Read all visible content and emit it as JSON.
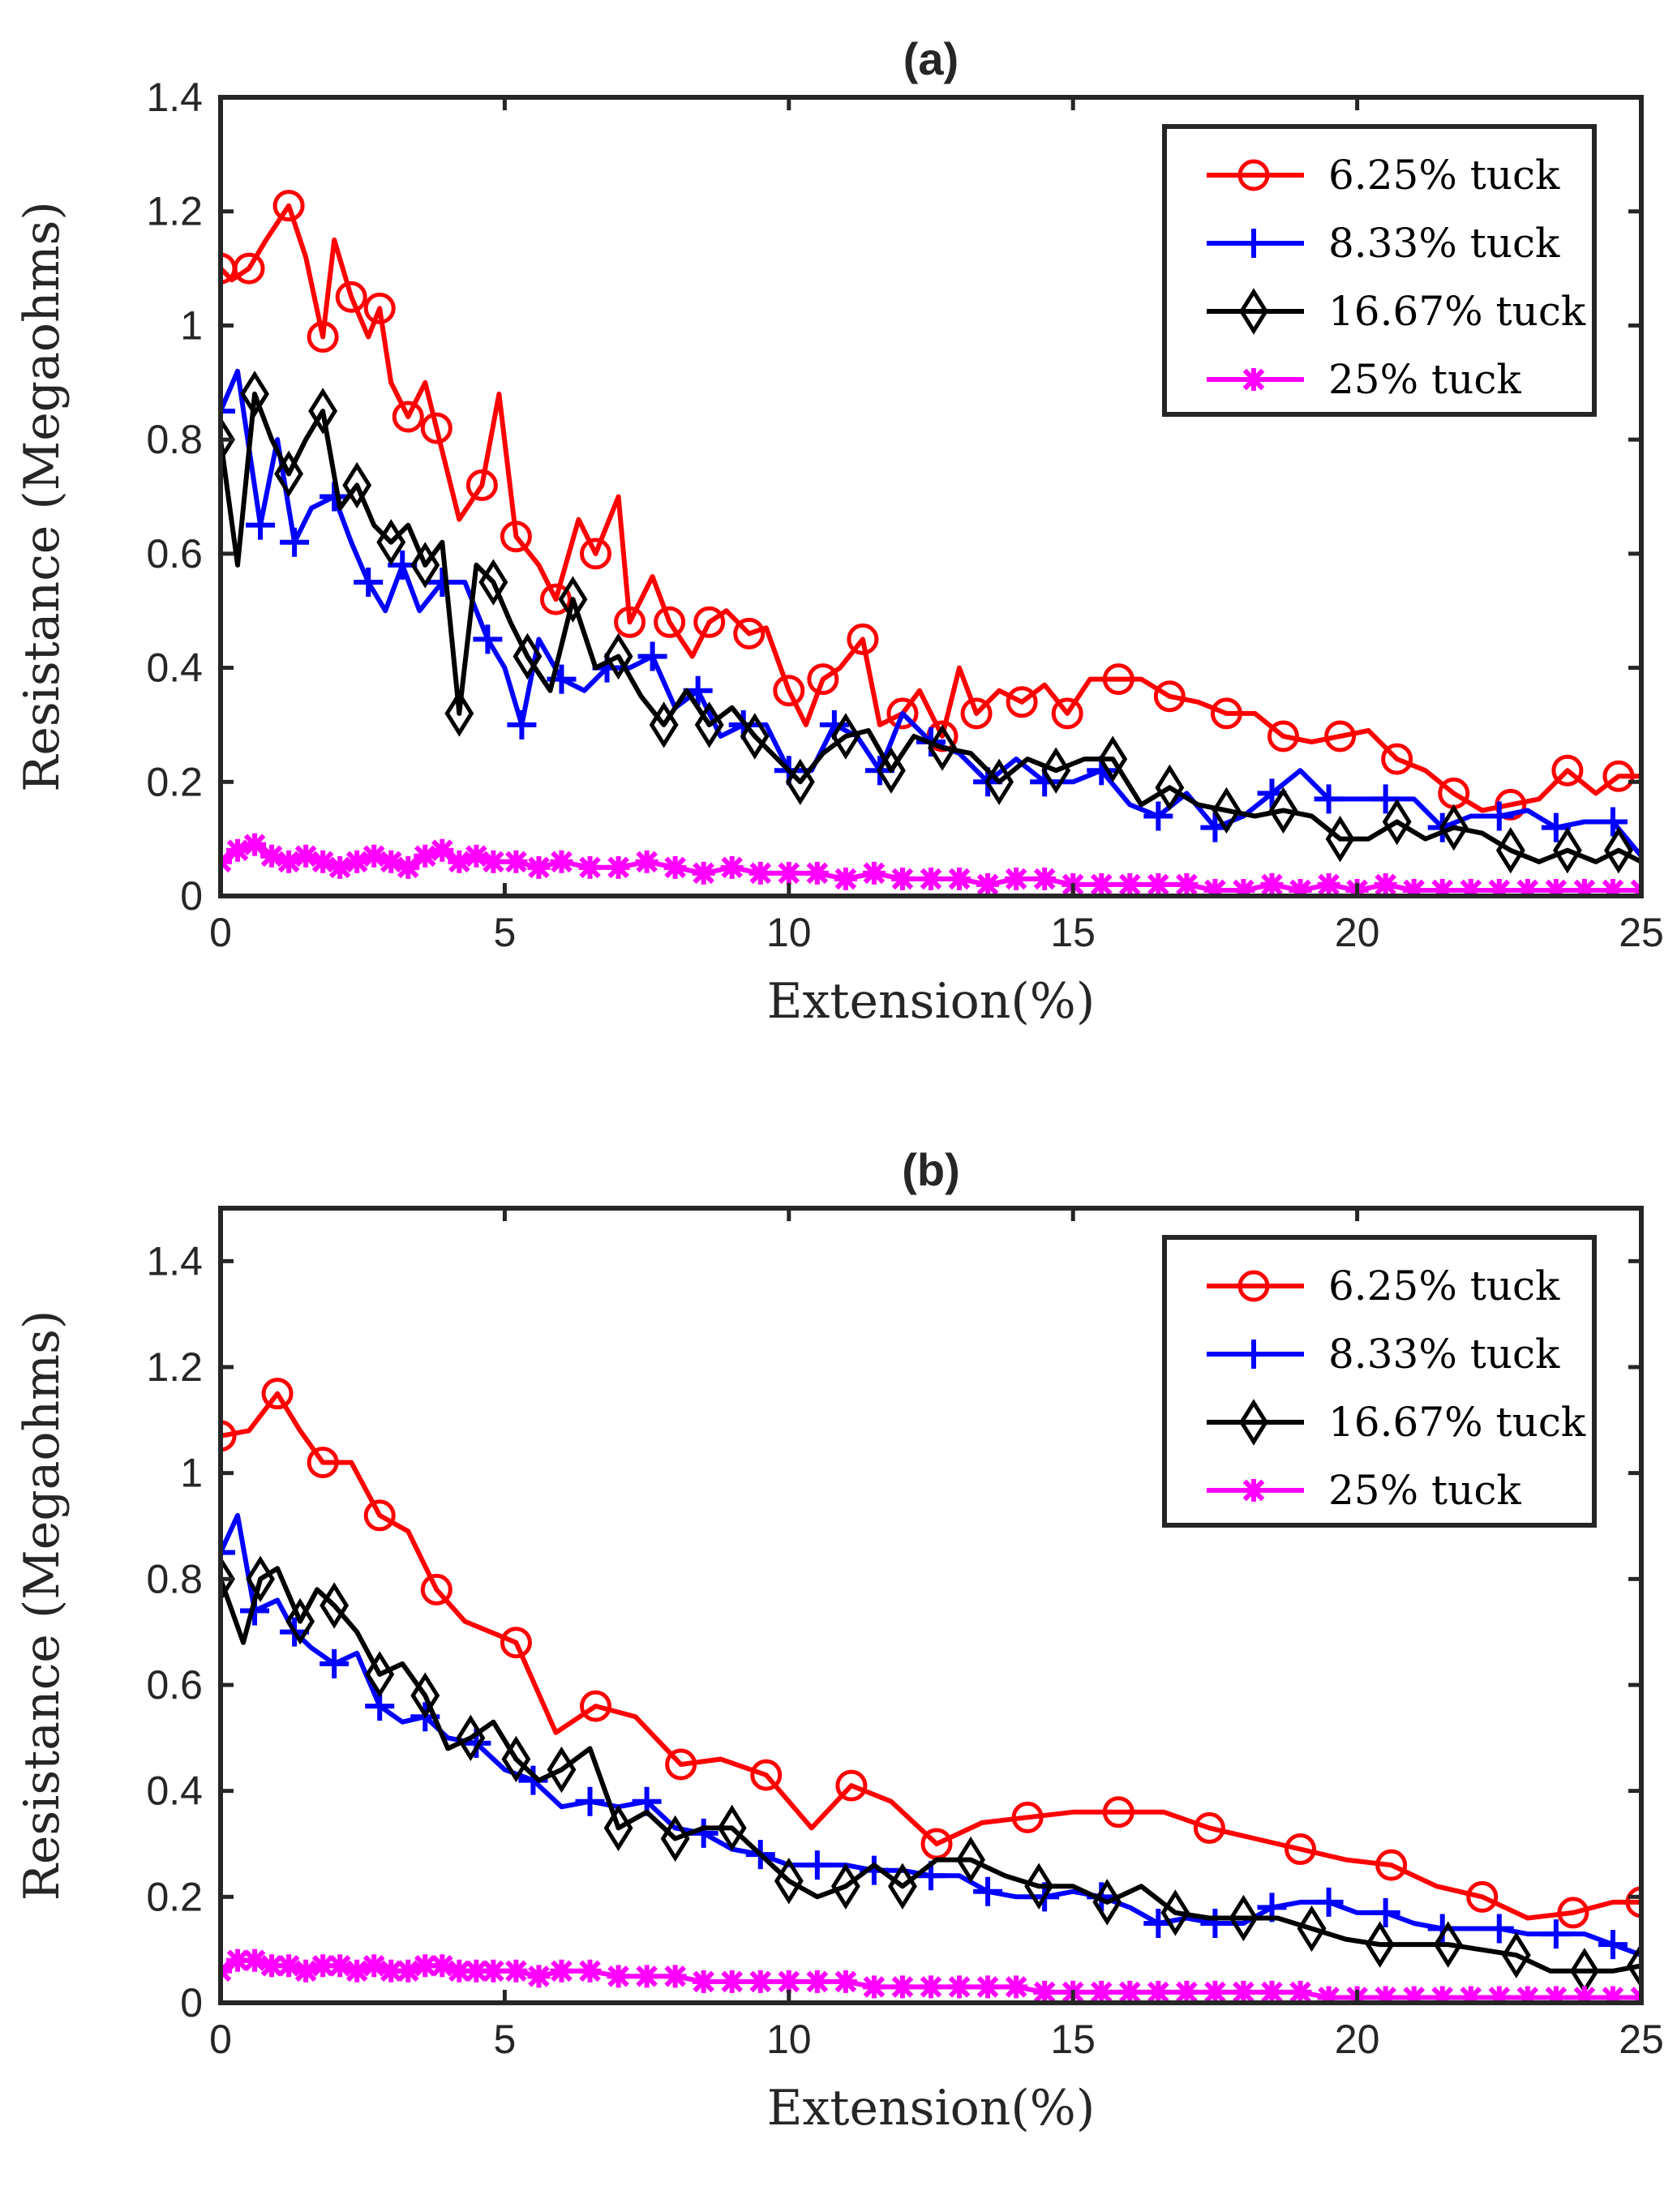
{
  "chart_data": [
    {
      "type": "line",
      "title": "(a)",
      "xlabel": "Extension(%)",
      "ylabel": "Resistance (Megaohms)",
      "xlim": [
        0,
        25
      ],
      "ylim": [
        0,
        1.4
      ],
      "xticks": [
        "0",
        "5",
        "10",
        "15",
        "20",
        "25"
      ],
      "yticks": [
        "0",
        "0.2",
        "0.4",
        "0.6",
        "0.8",
        "1",
        "1.2",
        "1.4"
      ],
      "legend_position": "top-right",
      "series": [
        {
          "name": "6.25% tuck",
          "color": "#ff0000",
          "marker": "circle",
          "x": [
            0,
            0.2,
            0.5,
            0.8,
            1.2,
            1.5,
            1.8,
            2.0,
            2.3,
            2.6,
            2.8,
            3.0,
            3.3,
            3.6,
            3.8,
            4.2,
            4.6,
            4.9,
            5.2,
            5.6,
            5.9,
            6.3,
            6.6,
            7.0,
            7.2,
            7.6,
            7.9,
            8.3,
            8.6,
            8.9,
            9.3,
            9.6,
            10.0,
            10.3,
            10.6,
            10.9,
            11.3,
            11.6,
            12.0,
            12.3,
            12.7,
            13.0,
            13.3,
            13.7,
            14.1,
            14.5,
            14.9,
            15.3,
            15.8,
            16.2,
            16.7,
            17.2,
            17.7,
            18.2,
            18.7,
            19.2,
            19.7,
            20.2,
            20.7,
            21.2,
            21.7,
            22.2,
            22.7,
            23.2,
            23.7,
            24.2,
            24.6,
            25.0
          ],
          "y": [
            1.1,
            1.08,
            1.1,
            1.15,
            1.21,
            1.12,
            0.98,
            1.15,
            1.05,
            0.98,
            1.03,
            0.9,
            0.84,
            0.9,
            0.82,
            0.66,
            0.72,
            0.88,
            0.63,
            0.58,
            0.52,
            0.66,
            0.6,
            0.7,
            0.48,
            0.56,
            0.48,
            0.42,
            0.48,
            0.5,
            0.46,
            0.47,
            0.36,
            0.3,
            0.38,
            0.4,
            0.45,
            0.3,
            0.32,
            0.36,
            0.28,
            0.4,
            0.32,
            0.36,
            0.34,
            0.37,
            0.32,
            0.38,
            0.38,
            0.38,
            0.35,
            0.34,
            0.32,
            0.32,
            0.28,
            0.27,
            0.28,
            0.29,
            0.24,
            0.22,
            0.18,
            0.15,
            0.16,
            0.17,
            0.22,
            0.18,
            0.21,
            0.21
          ]
        },
        {
          "name": "8.33% tuck",
          "color": "#0000ff",
          "marker": "plus",
          "x": [
            0,
            0.3,
            0.7,
            1.0,
            1.3,
            1.6,
            2.0,
            2.3,
            2.6,
            2.9,
            3.2,
            3.5,
            3.9,
            4.3,
            4.7,
            5.0,
            5.3,
            5.6,
            6.0,
            6.4,
            6.8,
            7.2,
            7.6,
            8.0,
            8.4,
            8.8,
            9.2,
            9.6,
            10.0,
            10.4,
            10.8,
            11.2,
            11.6,
            12.0,
            12.5,
            13.0,
            13.5,
            14.0,
            14.5,
            15.0,
            15.5,
            16.0,
            16.5,
            17.0,
            17.5,
            18.0,
            18.5,
            19.0,
            19.5,
            20.0,
            20.5,
            21.0,
            21.5,
            22.0,
            22.5,
            23.0,
            23.5,
            24.0,
            24.5,
            25.0
          ],
          "y": [
            0.85,
            0.92,
            0.65,
            0.8,
            0.62,
            0.68,
            0.7,
            0.62,
            0.55,
            0.5,
            0.58,
            0.5,
            0.55,
            0.55,
            0.45,
            0.4,
            0.3,
            0.45,
            0.38,
            0.36,
            0.4,
            0.4,
            0.42,
            0.33,
            0.36,
            0.28,
            0.3,
            0.3,
            0.22,
            0.22,
            0.3,
            0.28,
            0.22,
            0.32,
            0.27,
            0.25,
            0.2,
            0.24,
            0.2,
            0.2,
            0.22,
            0.16,
            0.14,
            0.18,
            0.12,
            0.14,
            0.18,
            0.22,
            0.17,
            0.17,
            0.17,
            0.17,
            0.12,
            0.14,
            0.14,
            0.15,
            0.12,
            0.13,
            0.13,
            0.07
          ]
        },
        {
          "name": "16.67% tuck",
          "color": "#000000",
          "marker": "diamond",
          "x": [
            0,
            0.3,
            0.6,
            0.9,
            1.2,
            1.5,
            1.8,
            2.1,
            2.4,
            2.7,
            3.0,
            3.3,
            3.6,
            3.9,
            4.2,
            4.5,
            4.8,
            5.1,
            5.4,
            5.8,
            6.2,
            6.6,
            7.0,
            7.4,
            7.8,
            8.2,
            8.6,
            9.0,
            9.4,
            9.8,
            10.2,
            10.6,
            11.0,
            11.4,
            11.8,
            12.2,
            12.7,
            13.2,
            13.7,
            14.2,
            14.7,
            15.2,
            15.7,
            16.2,
            16.7,
            17.2,
            17.7,
            18.2,
            18.7,
            19.2,
            19.7,
            20.2,
            20.7,
            21.2,
            21.7,
            22.2,
            22.7,
            23.2,
            23.7,
            24.2,
            24.6,
            25.0
          ],
          "y": [
            0.8,
            0.58,
            0.88,
            0.8,
            0.74,
            0.8,
            0.85,
            0.68,
            0.72,
            0.65,
            0.62,
            0.65,
            0.58,
            0.62,
            0.32,
            0.58,
            0.55,
            0.48,
            0.42,
            0.36,
            0.52,
            0.4,
            0.42,
            0.35,
            0.3,
            0.36,
            0.3,
            0.33,
            0.28,
            0.24,
            0.2,
            0.25,
            0.28,
            0.29,
            0.22,
            0.28,
            0.26,
            0.25,
            0.2,
            0.24,
            0.22,
            0.24,
            0.24,
            0.16,
            0.19,
            0.16,
            0.15,
            0.14,
            0.15,
            0.14,
            0.1,
            0.1,
            0.13,
            0.1,
            0.12,
            0.11,
            0.08,
            0.06,
            0.08,
            0.06,
            0.08,
            0.06
          ]
        },
        {
          "name": "25% tuck",
          "color": "#ff00ff",
          "marker": "asterisk",
          "x": [
            0,
            0.3,
            0.6,
            0.9,
            1.2,
            1.5,
            1.8,
            2.1,
            2.4,
            2.7,
            3.0,
            3.3,
            3.6,
            3.9,
            4.2,
            4.5,
            4.8,
            5.2,
            5.6,
            6.0,
            6.5,
            7.0,
            7.5,
            8.0,
            8.5,
            9.0,
            9.5,
            10.0,
            10.5,
            11.0,
            11.5,
            12.0,
            12.5,
            13.0,
            13.5,
            14.0,
            14.5,
            15.0,
            15.5,
            16.0,
            16.5,
            17.0,
            17.5,
            18.0,
            18.5,
            19.0,
            19.5,
            20.0,
            20.5,
            21.0,
            21.5,
            22.0,
            22.5,
            23.0,
            23.5,
            24.0,
            24.5,
            25.0
          ],
          "y": [
            0.06,
            0.08,
            0.09,
            0.07,
            0.06,
            0.07,
            0.06,
            0.05,
            0.06,
            0.07,
            0.06,
            0.05,
            0.07,
            0.08,
            0.06,
            0.07,
            0.06,
            0.06,
            0.05,
            0.06,
            0.05,
            0.05,
            0.06,
            0.05,
            0.04,
            0.05,
            0.04,
            0.04,
            0.04,
            0.03,
            0.04,
            0.03,
            0.03,
            0.03,
            0.02,
            0.03,
            0.03,
            0.02,
            0.02,
            0.02,
            0.02,
            0.02,
            0.01,
            0.01,
            0.02,
            0.01,
            0.02,
            0.01,
            0.02,
            0.01,
            0.01,
            0.01,
            0.01,
            0.01,
            0.01,
            0.01,
            0.01,
            0.01
          ]
        }
      ]
    },
    {
      "type": "line",
      "title": "(b)",
      "xlabel": "Extension(%)",
      "ylabel": "Resistance (Megaohms)",
      "xlim": [
        0,
        25
      ],
      "ylim": [
        0,
        1.5
      ],
      "xticks": [
        "0",
        "5",
        "10",
        "15",
        "20",
        "25"
      ],
      "yticks": [
        "0",
        "0.2",
        "0.4",
        "0.6",
        "0.8",
        "1",
        "1.2",
        "1.4"
      ],
      "legend_position": "top-right",
      "series": [
        {
          "name": "6.25% tuck",
          "color": "#ff0000",
          "marker": "circle",
          "x": [
            0,
            0.5,
            1.0,
            1.4,
            1.8,
            2.3,
            2.8,
            3.3,
            3.8,
            4.3,
            5.2,
            5.9,
            6.6,
            7.3,
            8.1,
            8.8,
            9.6,
            10.4,
            11.1,
            11.8,
            12.6,
            13.4,
            14.2,
            15.0,
            15.8,
            16.6,
            17.4,
            18.2,
            19.0,
            19.8,
            20.6,
            21.4,
            22.2,
            23.0,
            23.8,
            24.5,
            25.0
          ],
          "y": [
            1.07,
            1.08,
            1.15,
            1.08,
            1.02,
            1.02,
            0.92,
            0.89,
            0.78,
            0.72,
            0.68,
            0.51,
            0.56,
            0.54,
            0.45,
            0.46,
            0.43,
            0.33,
            0.41,
            0.38,
            0.3,
            0.34,
            0.35,
            0.36,
            0.36,
            0.36,
            0.33,
            0.31,
            0.29,
            0.27,
            0.26,
            0.22,
            0.2,
            0.16,
            0.17,
            0.19,
            0.19
          ]
        },
        {
          "name": "8.33% tuck",
          "color": "#0000ff",
          "marker": "plus",
          "x": [
            0,
            0.3,
            0.6,
            1.0,
            1.3,
            1.6,
            2.0,
            2.4,
            2.8,
            3.2,
            3.6,
            4.0,
            4.5,
            5.0,
            5.5,
            6.0,
            6.5,
            7.0,
            7.5,
            8.0,
            8.5,
            9.0,
            9.5,
            10.0,
            10.5,
            11.0,
            11.5,
            12.0,
            12.5,
            13.0,
            13.5,
            14.0,
            14.5,
            15.0,
            15.5,
            16.0,
            16.5,
            17.0,
            17.5,
            18.0,
            18.5,
            19.0,
            19.5,
            20.0,
            20.5,
            21.0,
            21.5,
            22.0,
            22.5,
            23.0,
            23.5,
            24.0,
            24.5,
            25.0
          ],
          "y": [
            0.85,
            0.92,
            0.74,
            0.76,
            0.7,
            0.67,
            0.64,
            0.66,
            0.56,
            0.53,
            0.54,
            0.5,
            0.49,
            0.44,
            0.42,
            0.37,
            0.38,
            0.37,
            0.38,
            0.33,
            0.32,
            0.29,
            0.28,
            0.26,
            0.26,
            0.26,
            0.25,
            0.25,
            0.24,
            0.24,
            0.21,
            0.2,
            0.2,
            0.21,
            0.2,
            0.18,
            0.15,
            0.16,
            0.15,
            0.15,
            0.18,
            0.19,
            0.19,
            0.17,
            0.17,
            0.15,
            0.14,
            0.14,
            0.14,
            0.13,
            0.13,
            0.13,
            0.11,
            0.09
          ]
        },
        {
          "name": "16.67% tuck",
          "color": "#000000",
          "marker": "diamond",
          "x": [
            0,
            0.4,
            0.7,
            1.0,
            1.4,
            1.7,
            2.0,
            2.4,
            2.8,
            3.2,
            3.6,
            4.0,
            4.4,
            4.8,
            5.2,
            5.6,
            6.0,
            6.5,
            7.0,
            7.5,
            8.0,
            8.5,
            9.0,
            9.5,
            10.0,
            10.5,
            11.0,
            11.5,
            12.0,
            12.6,
            13.2,
            13.8,
            14.4,
            15.0,
            15.6,
            16.2,
            16.8,
            17.4,
            18.0,
            18.6,
            19.2,
            19.8,
            20.4,
            21.0,
            21.6,
            22.2,
            22.8,
            23.4,
            24.0,
            24.5,
            25.0
          ],
          "y": [
            0.8,
            0.68,
            0.8,
            0.82,
            0.72,
            0.78,
            0.75,
            0.7,
            0.62,
            0.64,
            0.58,
            0.48,
            0.5,
            0.53,
            0.46,
            0.42,
            0.44,
            0.48,
            0.33,
            0.36,
            0.31,
            0.33,
            0.33,
            0.28,
            0.23,
            0.2,
            0.22,
            0.26,
            0.22,
            0.27,
            0.27,
            0.24,
            0.22,
            0.22,
            0.19,
            0.22,
            0.17,
            0.16,
            0.16,
            0.16,
            0.14,
            0.12,
            0.11,
            0.11,
            0.11,
            0.1,
            0.09,
            0.06,
            0.06,
            0.06,
            0.07
          ]
        },
        {
          "name": "25% tuck",
          "color": "#ff00ff",
          "marker": "asterisk",
          "x": [
            0,
            0.3,
            0.6,
            0.9,
            1.2,
            1.5,
            1.8,
            2.1,
            2.4,
            2.7,
            3.0,
            3.3,
            3.6,
            3.9,
            4.2,
            4.5,
            4.8,
            5.2,
            5.6,
            6.0,
            6.5,
            7.0,
            7.5,
            8.0,
            8.5,
            9.0,
            9.5,
            10.0,
            10.5,
            11.0,
            11.5,
            12.0,
            12.5,
            13.0,
            13.5,
            14.0,
            14.5,
            15.0,
            15.5,
            16.0,
            16.5,
            17.0,
            17.5,
            18.0,
            18.5,
            19.0,
            19.5,
            20.0,
            20.5,
            21.0,
            21.5,
            22.0,
            22.5,
            23.0,
            23.5,
            24.0,
            24.5,
            25.0
          ],
          "y": [
            0.06,
            0.08,
            0.08,
            0.07,
            0.07,
            0.06,
            0.07,
            0.07,
            0.06,
            0.07,
            0.06,
            0.06,
            0.07,
            0.07,
            0.06,
            0.06,
            0.06,
            0.06,
            0.05,
            0.06,
            0.06,
            0.05,
            0.05,
            0.05,
            0.04,
            0.04,
            0.04,
            0.04,
            0.04,
            0.04,
            0.03,
            0.03,
            0.03,
            0.03,
            0.03,
            0.03,
            0.02,
            0.02,
            0.02,
            0.02,
            0.02,
            0.02,
            0.02,
            0.02,
            0.02,
            0.02,
            0.01,
            0.01,
            0.01,
            0.01,
            0.01,
            0.01,
            0.01,
            0.01,
            0.01,
            0.01,
            0.01,
            0.01
          ]
        }
      ]
    }
  ]
}
